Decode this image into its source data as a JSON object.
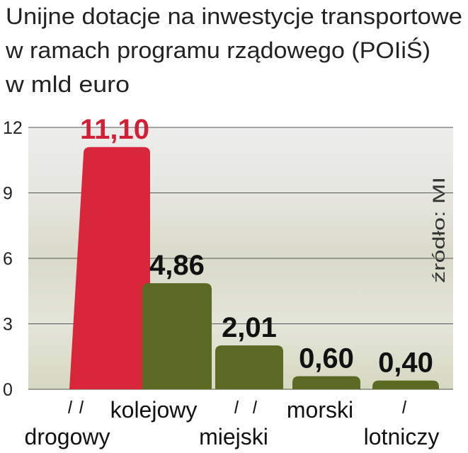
{
  "chart_data": {
    "type": "bar",
    "title": [
      "Unijne dotacje na inwestycje transportowe",
      "w ramach programu rządowego (POIiŚ)"
    ],
    "subtitle": "w mld euro",
    "source": "źródło: MI",
    "categories": [
      "drogowy",
      "kolejowy",
      "miejski",
      "morski",
      "lotniczy"
    ],
    "values": [
      11.1,
      4.86,
      2.01,
      0.6,
      0.4
    ],
    "value_labels": [
      "11,10",
      "4,86",
      "2,01",
      "0,60",
      "0,40"
    ],
    "colors": [
      "#d8263a",
      "#5b6a22",
      "#5b6a22",
      "#5b6a22",
      "#5b6a22"
    ],
    "value_label_colors": [
      "#d11f35",
      "#111111",
      "#111111",
      "#111111",
      "#111111"
    ],
    "ylim": [
      0,
      12
    ],
    "yticks": [
      0,
      3,
      6,
      9,
      12
    ],
    "grid": true
  }
}
